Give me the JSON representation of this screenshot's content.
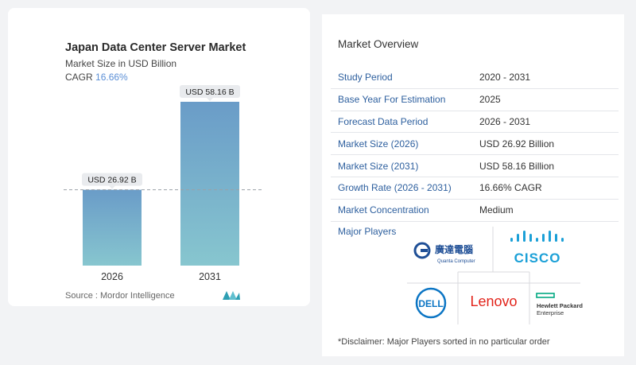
{
  "chart_card": {
    "title": "Japan Data Center Server Market",
    "subtitle": "Market Size in USD Billion",
    "cagr_label": "CAGR",
    "cagr_value": "16.66%",
    "source": "Source :  Mordor Intelligence"
  },
  "chart_data": {
    "type": "bar",
    "categories": [
      "2026",
      "2031"
    ],
    "values": [
      26.92,
      58.16
    ],
    "data_labels": [
      "USD 26.92 B",
      "USD 58.16 B"
    ],
    "title": "Japan Data Center Server Market",
    "ylabel": "Market Size in USD Billion",
    "xlabel": "",
    "colors": {
      "bar_top": "#6a9cc8",
      "bar_bottom": "#87c6cf",
      "label_bg": "#e9ebee"
    }
  },
  "overview": {
    "title": "Market Overview",
    "rows": [
      {
        "label": "Study Period",
        "value": "2020 - 2031"
      },
      {
        "label": "Base Year For Estimation",
        "value": "2025"
      },
      {
        "label": "Forecast Data Period",
        "value": "2026 - 2031"
      },
      {
        "label": "Market Size (2026)",
        "value": "USD 26.92 Billion"
      },
      {
        "label": "Market Size (2031)",
        "value": "USD 58.16 Billion"
      },
      {
        "label": "Growth Rate (2026 - 2031)",
        "value": "16.66% CAGR"
      },
      {
        "label": "Market Concentration",
        "value": "Medium"
      }
    ],
    "players_label": "Major Players",
    "players": [
      {
        "name": "Quanta Computer",
        "cjk": "廣達電腦",
        "sub": "Quanta Computer"
      },
      {
        "name": "Cisco",
        "text": "CISCO"
      },
      {
        "name": "Dell",
        "text": "DELL"
      },
      {
        "name": "Lenovo",
        "text": "Lenovo"
      },
      {
        "name": "Hewlett Packard Enterprise",
        "line1": "Hewlett Packard",
        "line2": "Enterprise"
      }
    ],
    "disclaimer": "*Disclaimer: Major Players sorted in no particular order"
  },
  "colors": {
    "label_blue": "#2d5f9e",
    "cagr_blue": "#5b8fd6",
    "cisco_blue": "#1ba0d7",
    "dell_blue": "#0b75c4",
    "lenovo_red": "#e2231a",
    "hpe_green": "#01a982",
    "quanta_blue": "#1f4f96"
  }
}
